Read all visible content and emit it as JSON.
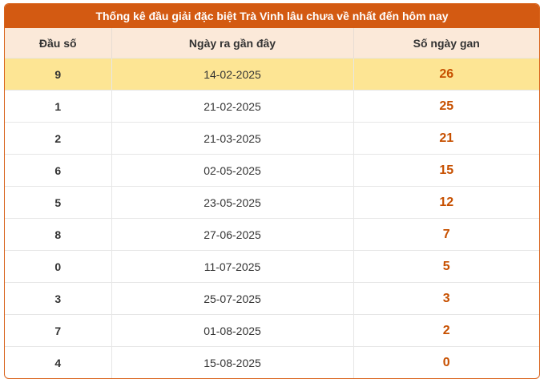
{
  "table": {
    "title": "Thống kê đầu giải đặc biệt Trà Vinh lâu chưa về nhất đến hôm nay",
    "header": [
      "Đầu số",
      "Ngày ra gần đây",
      "Số ngày gan"
    ],
    "rows": [
      [
        "9",
        "14-02-2025",
        "26"
      ],
      [
        "1",
        "21-02-2025",
        "25"
      ],
      [
        "2",
        "21-03-2025",
        "21"
      ],
      [
        "6",
        "02-05-2025",
        "15"
      ],
      [
        "5",
        "23-05-2025",
        "12"
      ],
      [
        "8",
        "27-06-2025",
        "7"
      ],
      [
        "0",
        "11-07-2025",
        "5"
      ],
      [
        "3",
        "25-07-2025",
        "3"
      ],
      [
        "7",
        "01-08-2025",
        "2"
      ],
      [
        "4",
        "15-08-2025",
        "0"
      ]
    ]
  }
}
